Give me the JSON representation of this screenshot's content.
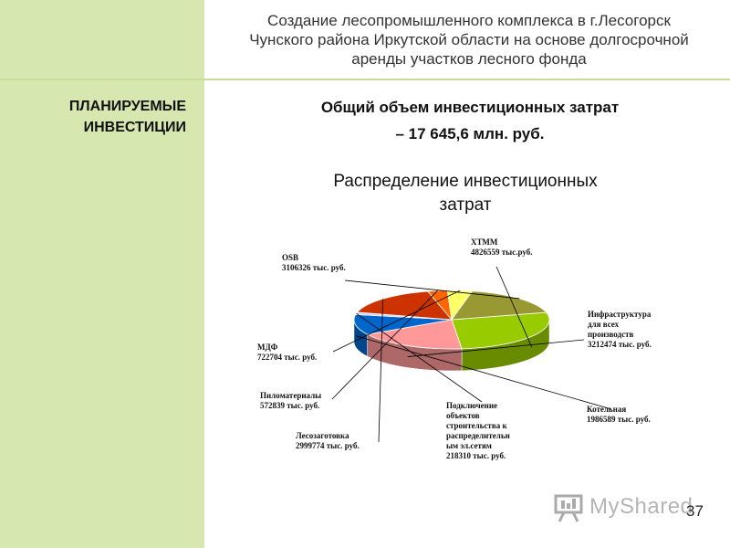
{
  "header": {
    "title_lines": [
      "Создание лесопромышленного комплекса в г.Лесогорск",
      "Чунского района Иркутской области на основе долгосрочной",
      "аренды участков лесного фонда"
    ]
  },
  "sidebar": {
    "section_label_lines": [
      "ПЛАНИРУЕМЫЕ",
      "ИНВЕСТИЦИИ"
    ]
  },
  "total": {
    "lines": [
      "Общий объем инвестиционных затрат",
      "– 17 645,6 млн. руб."
    ]
  },
  "chart_data": {
    "type": "pie",
    "title_lines": [
      "Распределение инвестиционных",
      "затрат"
    ],
    "unit": "тыс. руб.",
    "slices": [
      {
        "label_lines": [
          "ХТММ",
          "4826559 тыс.руб."
        ],
        "value": 4826559,
        "color": "#99cc00"
      },
      {
        "label_lines": [
          "Инфраструктура",
          "для всех",
          "производств",
          "3212474 тыс. руб."
        ],
        "value": 3212474,
        "color": "#ff9999"
      },
      {
        "label_lines": [
          "Котельная",
          "1986589 тыс. руб."
        ],
        "value": 1986589,
        "color": "#0066cc"
      },
      {
        "label_lines": [
          "Подключение",
          "объектов",
          "строительства к",
          "распределительн",
          "ым эл.сетям",
          "218310 тыс. руб."
        ],
        "value": 218310,
        "color": "#ccccff"
      },
      {
        "label_lines": [
          "Лесозаготовка",
          "2999774 тыс. руб."
        ],
        "value": 2999774,
        "color": "#cc3300"
      },
      {
        "label_lines": [
          "Пиломатериалы",
          "572839 тыс. руб."
        ],
        "value": 572839,
        "color": "#ff6600"
      },
      {
        "label_lines": [
          "МДФ",
          "722704 тыс. руб."
        ],
        "value": 722704,
        "color": "#ffff66"
      },
      {
        "label_lines": [
          "OSB",
          "3106326 тыс. руб."
        ],
        "value": 3106326,
        "color": "#999933"
      }
    ]
  },
  "footer": {
    "page_number": "37",
    "watermark_text": "MyShared"
  }
}
